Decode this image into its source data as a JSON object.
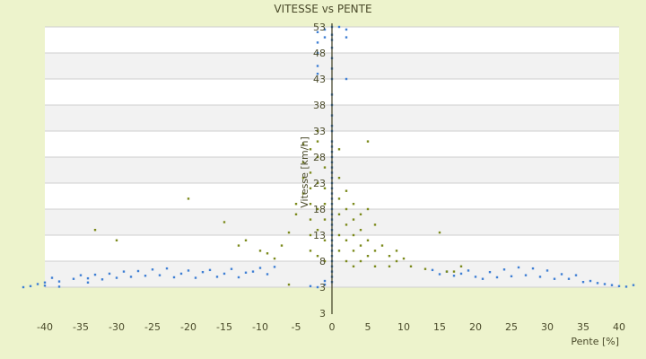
{
  "chart_data": {
    "type": "scatter",
    "title": "VITESSE vs PENTE",
    "xlabel": "Pente [%]",
    "ylabel": "Vitesse [km/h]",
    "xlim": [
      -40,
      40
    ],
    "ylim": [
      3,
      53
    ],
    "x_ticks": [
      "-40",
      "-35",
      "-30",
      "-25",
      "-20",
      "-15",
      "-10",
      "-5",
      "0",
      "5",
      "10",
      "15",
      "20",
      "25",
      "30",
      "35",
      "40"
    ],
    "y_ticks": [
      "3",
      "3",
      "8",
      "13",
      "18",
      "23",
      "28",
      "33",
      "38",
      "43",
      "48",
      "53"
    ],
    "grid": true,
    "legend": "none",
    "colors": {
      "series_blue": "#3f7fd4",
      "series_olive": "#7c8a1c",
      "band": "#f2f2f2",
      "plot_bg": "#ffffff",
      "axis": "#4a4a2a"
    },
    "series": [
      {
        "color": "#3f7fd4",
        "points": [
          [
            -43,
            3
          ],
          [
            -42,
            3.2
          ],
          [
            -41,
            3.6
          ],
          [
            -40,
            3.9
          ],
          [
            -40,
            3.3
          ],
          [
            -39,
            4.8
          ],
          [
            -38,
            4.1
          ],
          [
            -38,
            3.1
          ],
          [
            -36,
            4.6
          ],
          [
            -35,
            5.3
          ],
          [
            -34,
            4.7
          ],
          [
            -34,
            3.9
          ],
          [
            -33,
            5.4
          ],
          [
            -32,
            4.5
          ],
          [
            -31,
            5.6
          ],
          [
            -30,
            4.8
          ],
          [
            -29,
            6.0
          ],
          [
            -28,
            5.0
          ],
          [
            -27,
            6.1
          ],
          [
            -26,
            5.2
          ],
          [
            -25,
            6.4
          ],
          [
            -24,
            5.3
          ],
          [
            -23,
            6.6
          ],
          [
            -22,
            4.9
          ],
          [
            -21,
            5.6
          ],
          [
            -20,
            6.2
          ],
          [
            -19,
            4.8
          ],
          [
            -18,
            5.9
          ],
          [
            -17,
            6.3
          ],
          [
            -16,
            5.0
          ],
          [
            -15,
            5.6
          ],
          [
            -14,
            6.5
          ],
          [
            -13,
            4.9
          ],
          [
            -12,
            5.8
          ],
          [
            -11,
            6.0
          ],
          [
            -10,
            6.7
          ],
          [
            -9,
            5.5
          ],
          [
            -8,
            6.9
          ],
          [
            -3,
            3.2
          ],
          [
            -2,
            3.0
          ],
          [
            -1,
            4.2
          ],
          [
            -1,
            3.5
          ],
          [
            0,
            53
          ],
          [
            0,
            51.5
          ],
          [
            0,
            50.5
          ],
          [
            0,
            49
          ],
          [
            0,
            47
          ],
          [
            0,
            45
          ],
          [
            0,
            43
          ],
          [
            0,
            40
          ],
          [
            0,
            38
          ],
          [
            0,
            36
          ],
          [
            0,
            34
          ],
          [
            0,
            33
          ],
          [
            0,
            31
          ],
          [
            0,
            30
          ],
          [
            0,
            29
          ],
          [
            0,
            28
          ],
          [
            0,
            27
          ],
          [
            0,
            26
          ],
          [
            0,
            25
          ],
          [
            0,
            24
          ],
          [
            0,
            23
          ],
          [
            0,
            22
          ],
          [
            0,
            21
          ],
          [
            0,
            20
          ],
          [
            0,
            19
          ],
          [
            0,
            18
          ],
          [
            0,
            17
          ],
          [
            0,
            16
          ],
          [
            0,
            15
          ],
          [
            0,
            14
          ],
          [
            0,
            13
          ],
          [
            0,
            12
          ],
          [
            0,
            11
          ],
          [
            0,
            10
          ],
          [
            0,
            9
          ],
          [
            0,
            8
          ],
          [
            0,
            7
          ],
          [
            0,
            6
          ],
          [
            0,
            5
          ],
          [
            0,
            4
          ],
          [
            -2,
            52
          ],
          [
            -2,
            50
          ],
          [
            -2,
            48
          ],
          [
            -2,
            45.5
          ],
          [
            -2,
            44
          ],
          [
            -1,
            52.5
          ],
          [
            -1,
            51
          ],
          [
            2,
            52.5
          ],
          [
            2,
            51
          ],
          [
            2,
            43
          ],
          [
            1,
            53
          ],
          [
            14,
            6.3
          ],
          [
            15,
            5.5
          ],
          [
            16,
            6.0
          ],
          [
            17,
            5.2
          ],
          [
            18,
            5.6
          ],
          [
            19,
            6.2
          ],
          [
            20,
            5.0
          ],
          [
            21,
            4.6
          ],
          [
            22,
            5.9
          ],
          [
            23,
            4.9
          ],
          [
            24,
            6.4
          ],
          [
            25,
            5.1
          ],
          [
            26,
            6.8
          ],
          [
            27,
            5.3
          ],
          [
            28,
            6.6
          ],
          [
            29,
            5.0
          ],
          [
            30,
            6.2
          ],
          [
            31,
            4.6
          ],
          [
            32,
            5.5
          ],
          [
            33,
            4.6
          ],
          [
            34,
            5.3
          ],
          [
            35,
            4.0
          ],
          [
            36,
            4.2
          ],
          [
            37,
            3.8
          ],
          [
            38,
            3.6
          ],
          [
            39,
            3.4
          ],
          [
            40,
            3.2
          ],
          [
            41,
            3.1
          ],
          [
            42,
            3.4
          ]
        ]
      },
      {
        "color": "#7c8a1c",
        "points": [
          [
            -33,
            14
          ],
          [
            -30,
            12
          ],
          [
            -20,
            20
          ],
          [
            -15,
            15.5
          ],
          [
            -13,
            11
          ],
          [
            -12,
            12
          ],
          [
            -10,
            10
          ],
          [
            -9,
            9.5
          ],
          [
            -8,
            8.5
          ],
          [
            -7,
            11
          ],
          [
            -6,
            13.5
          ],
          [
            -6,
            3.5
          ],
          [
            -5,
            17
          ],
          [
            -5,
            19
          ],
          [
            -4,
            21
          ],
          [
            -4,
            24
          ],
          [
            -4,
            27
          ],
          [
            -4,
            30.5
          ],
          [
            -3,
            29.5
          ],
          [
            -3,
            25
          ],
          [
            -3,
            22
          ],
          [
            -3,
            19
          ],
          [
            -3,
            16
          ],
          [
            -3,
            13
          ],
          [
            -3,
            10
          ],
          [
            -2,
            31
          ],
          [
            -2,
            33
          ],
          [
            -2,
            28
          ],
          [
            -2,
            23
          ],
          [
            -2,
            18
          ],
          [
            -2,
            14
          ],
          [
            -2,
            9
          ],
          [
            -1,
            26
          ],
          [
            -1,
            22
          ],
          [
            -1,
            19
          ],
          [
            -1,
            16
          ],
          [
            -1,
            12
          ],
          [
            -1,
            8
          ],
          [
            1,
            29.5
          ],
          [
            1,
            24
          ],
          [
            1,
            20
          ],
          [
            1,
            17
          ],
          [
            1,
            13
          ],
          [
            1,
            10
          ],
          [
            2,
            21.5
          ],
          [
            2,
            18
          ],
          [
            2,
            15
          ],
          [
            2,
            12
          ],
          [
            2,
            8
          ],
          [
            3,
            19
          ],
          [
            3,
            16
          ],
          [
            3,
            13
          ],
          [
            3,
            10
          ],
          [
            3,
            7
          ],
          [
            4,
            17
          ],
          [
            4,
            14
          ],
          [
            4,
            11
          ],
          [
            4,
            8
          ],
          [
            5,
            31
          ],
          [
            5,
            18
          ],
          [
            5,
            12
          ],
          [
            5,
            9
          ],
          [
            6,
            15
          ],
          [
            6,
            10
          ],
          [
            6,
            7
          ],
          [
            7,
            11
          ],
          [
            8,
            9
          ],
          [
            8,
            7
          ],
          [
            9,
            10
          ],
          [
            9,
            8
          ],
          [
            10,
            8.5
          ],
          [
            11,
            7
          ],
          [
            13,
            6.5
          ],
          [
            15,
            13.5
          ],
          [
            16,
            6
          ],
          [
            17,
            6
          ],
          [
            18,
            7
          ]
        ]
      }
    ]
  }
}
